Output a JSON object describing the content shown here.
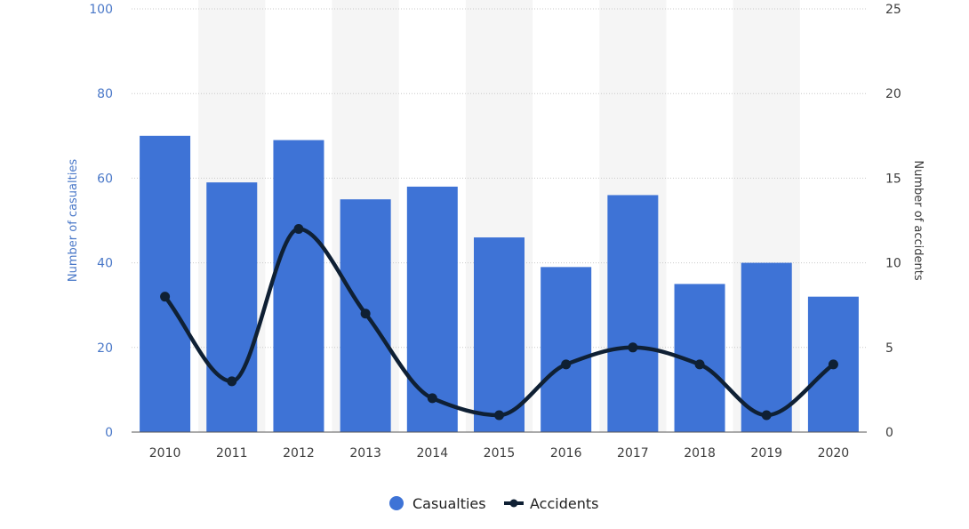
{
  "chart_data": {
    "type": "bar+line",
    "categories": [
      "2010",
      "2011",
      "2012",
      "2013",
      "2014",
      "2015",
      "2016",
      "2017",
      "2018",
      "2019",
      "2020"
    ],
    "series": [
      {
        "name": "Casualties",
        "type": "bar",
        "axis": "left",
        "color": "#3e73d6",
        "values": [
          70,
          59,
          69,
          55,
          58,
          46,
          39,
          56,
          35,
          40,
          32
        ]
      },
      {
        "name": "Accidents",
        "type": "line",
        "axis": "right",
        "color": "#0f2034",
        "values": [
          8,
          3,
          12,
          7,
          2,
          1,
          4,
          5,
          4,
          1,
          4
        ]
      }
    ],
    "y_left": {
      "label": "Number of casualties",
      "range": [
        0,
        100
      ],
      "ticks": [
        "0",
        "20",
        "40",
        "60",
        "80",
        "100"
      ]
    },
    "y_right": {
      "label": "Number of accidents",
      "range": [
        0,
        25
      ],
      "ticks": [
        "0",
        "5",
        "10",
        "15",
        "20",
        "25"
      ]
    },
    "grid": true,
    "legend_position": "bottom-center",
    "colors": {
      "bar": "#3e73d6",
      "line": "#0f2034",
      "band": "#f5f5f5",
      "grid": "#c9c9c9"
    }
  }
}
